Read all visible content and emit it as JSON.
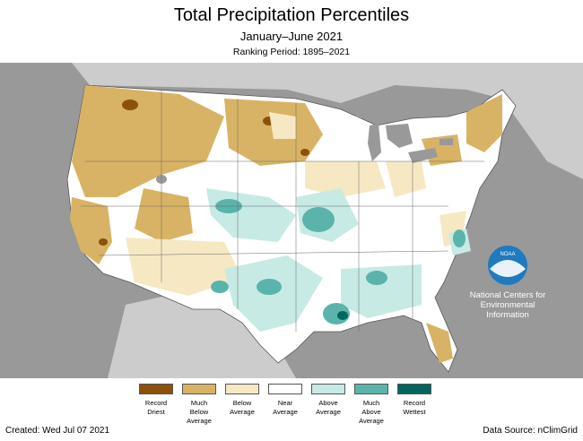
{
  "header": {
    "title": "Total Precipitation Percentiles",
    "subtitle": "January–June 2021",
    "ranking": "Ranking Period: 1895–2021"
  },
  "legend": {
    "items": [
      {
        "label_lines": [
          "Record",
          "Driest"
        ],
        "color": "#8c510a"
      },
      {
        "label_lines": [
          "Much",
          "Below",
          "Average"
        ],
        "color": "#d8b365"
      },
      {
        "label_lines": [
          "Below",
          "Average"
        ],
        "color": "#f6e8c3"
      },
      {
        "label_lines": [
          "Near",
          "Average"
        ],
        "color": "#ffffff"
      },
      {
        "label_lines": [
          "Above",
          "Average"
        ],
        "color": "#c7eae5"
      },
      {
        "label_lines": [
          "Much",
          "Above",
          "Average"
        ],
        "color": "#5ab4ac"
      },
      {
        "label_lines": [
          "Record",
          "Wettest"
        ],
        "color": "#01665e"
      }
    ]
  },
  "logo": {
    "icon": "noaa-logo-icon",
    "wordmark": "NOAA",
    "org_lines": [
      "National Centers for",
      "Environmental",
      "Information"
    ]
  },
  "footer": {
    "created": "Created: Wed Jul 07 2021",
    "source": "Data Source: nClimGrid"
  },
  "colors": {
    "background_land": "#cccccc",
    "ocean_frame": "#999999",
    "lakes": "#999999",
    "noaa_blue": "#1f7ac0"
  }
}
